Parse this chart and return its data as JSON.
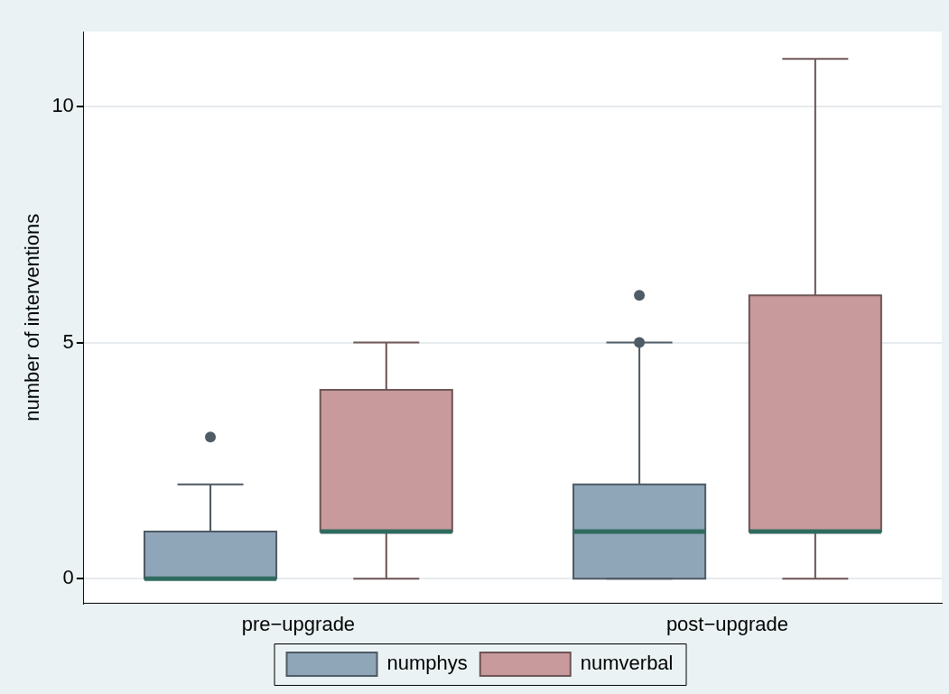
{
  "chart_data": {
    "type": "box",
    "ylabel": "number of interventions",
    "categories": [
      "pre−upgrade",
      "post−upgrade"
    ],
    "series": [
      {
        "name": "numphys",
        "color": "#8fa5b8",
        "boxes": [
          {
            "low": 0,
            "q1": 0,
            "median": 0,
            "q3": 1,
            "high": 2,
            "outliers": [
              3
            ]
          },
          {
            "low": 0,
            "q1": 0,
            "median": 1,
            "q3": 2,
            "high": 5,
            "outliers": [
              5,
              6
            ]
          }
        ]
      },
      {
        "name": "numverbal",
        "color": "#c89a9c",
        "boxes": [
          {
            "low": 0,
            "q1": 1,
            "median": 1,
            "q3": 4,
            "high": 5
          },
          {
            "low": 0,
            "q1": 1,
            "median": 1,
            "q3": 6,
            "high": 11
          }
        ]
      }
    ],
    "ylim": [
      -0.52,
      11.58
    ],
    "yticks": [
      0,
      5,
      10
    ],
    "grid": "y",
    "legend": "bottom"
  }
}
